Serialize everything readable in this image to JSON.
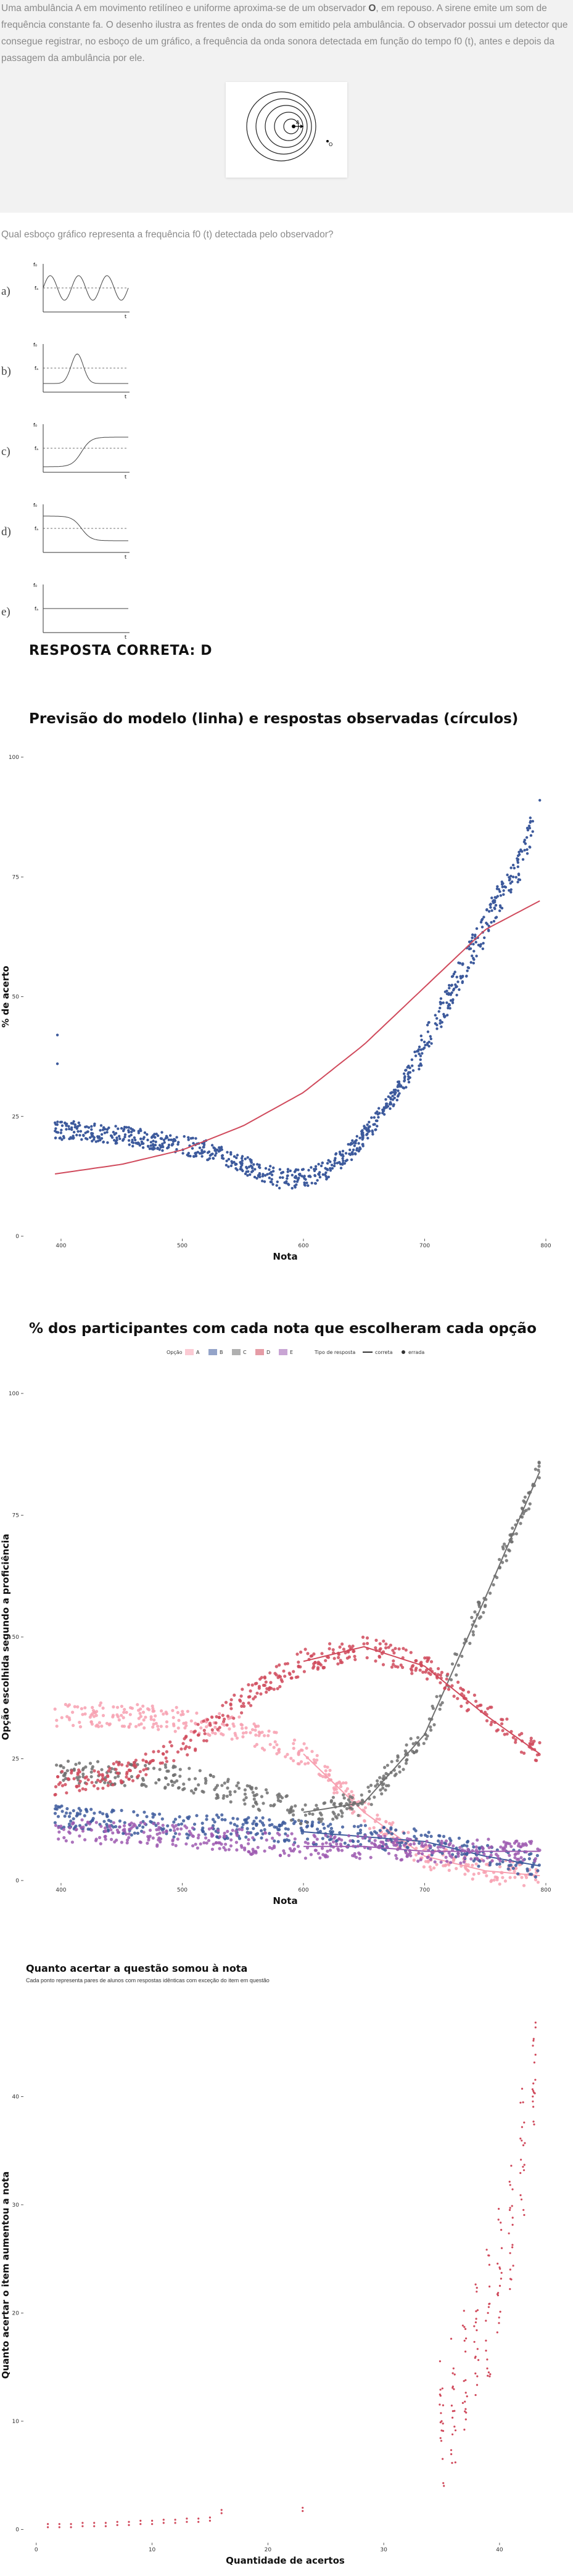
{
  "question": {
    "intro_a": "Uma ambulância A em movimento retilíneo e uniforme aproxima-se de um observador ",
    "intro_observer": "O",
    "intro_b": ", em repouso. A sirene emite um som de frequência constante fa. O desenho ilustra as frentes de onda do som emitido pela ambulância. O observador possui um detector que consegue registrar, no esboço de um gráfico, a frequência da onda sonora detectada em função do tempo f0 (t), antes e depois da passagem da ambulância por ele.",
    "figure_label_a": "A",
    "figure_label_o": "O",
    "prompt": "Qual esboço gráfico representa a frequência f0 (t) detectada pelo observador?",
    "options": [
      {
        "letter": "a)",
        "shape": "sine"
      },
      {
        "letter": "b)",
        "shape": "bump"
      },
      {
        "letter": "c)",
        "shape": "rise"
      },
      {
        "letter": "d)",
        "shape": "fall"
      },
      {
        "letter": "e)",
        "shape": "flat"
      }
    ],
    "axis_f": "f₀",
    "axis_fa": "fₐ",
    "axis_t": "t",
    "answer": "RESPOSTA CORRETA: D"
  },
  "colors": {
    "blue": "#3d5a9c",
    "red_line": "#d04a5c",
    "A": "#f7a0b0",
    "B": "#3d5a9c",
    "C": "#707070",
    "D": "#d04a5c",
    "E": "#9d5bb0"
  },
  "chart_data": [
    {
      "type": "scatter",
      "title": "Previsão do modelo (linha) e respostas observadas (círculos)",
      "xlabel": "Nota",
      "ylabel": "% de acerto",
      "xlim": [
        370,
        800
      ],
      "ylim": [
        0,
        100
      ],
      "xticks": [
        400,
        500,
        600,
        700,
        800
      ],
      "yticks": [
        0,
        25,
        50,
        75,
        100
      ],
      "series": [
        {
          "kind": "line",
          "x": [
            395,
            450,
            500,
            550,
            600,
            650,
            700,
            750,
            795
          ],
          "y": [
            13,
            15,
            18,
            23,
            30,
            40,
            52,
            64,
            70
          ]
        },
        {
          "kind": "points",
          "x": [
            395,
            420,
            450,
            480,
            500,
            520,
            540,
            560,
            580,
            600,
            620,
            640,
            660,
            680,
            700,
            720,
            740,
            760,
            780,
            795
          ],
          "y": [
            22,
            22,
            21,
            20,
            19,
            18,
            16,
            14,
            12,
            12,
            14,
            18,
            24,
            31,
            40,
            50,
            60,
            70,
            78,
            91
          ]
        }
      ]
    },
    {
      "type": "scatter",
      "title": "% dos participantes com cada nota que escolheram cada opção",
      "xlabel": "Nota",
      "ylabel": "Opção escolhida segundo a proficiência",
      "xlim": [
        370,
        800
      ],
      "ylim": [
        0,
        100
      ],
      "xticks": [
        400,
        500,
        600,
        700,
        800
      ],
      "yticks": [
        0,
        25,
        50,
        75,
        100
      ],
      "legend_title": "Opção",
      "legend_type_title": "Tipo de resposta",
      "legend_types": [
        "correta",
        "errada"
      ],
      "series": [
        {
          "name": "A",
          "x": [
            395,
            450,
            500,
            550,
            600,
            650,
            700,
            750,
            795
          ],
          "y": [
            34,
            34,
            33,
            31,
            26,
            14,
            5,
            2,
            1
          ]
        },
        {
          "name": "B",
          "x": [
            395,
            450,
            500,
            550,
            600,
            650,
            700,
            750,
            795
          ],
          "y": [
            13,
            12,
            11,
            11,
            10,
            9,
            8,
            5,
            3
          ]
        },
        {
          "name": "C",
          "x": [
            395,
            450,
            500,
            550,
            600,
            650,
            700,
            750,
            795
          ],
          "y": [
            22,
            22,
            21,
            18,
            14,
            16,
            30,
            58,
            84
          ]
        },
        {
          "name": "D",
          "x": [
            395,
            450,
            500,
            550,
            600,
            650,
            700,
            750,
            795
          ],
          "y": [
            20,
            22,
            27,
            37,
            45,
            48,
            44,
            34,
            26
          ]
        },
        {
          "name": "E",
          "x": [
            395,
            450,
            500,
            550,
            600,
            650,
            700,
            750,
            795
          ],
          "y": [
            10,
            10,
            9,
            8,
            7,
            7,
            6,
            6,
            6
          ]
        }
      ]
    },
    {
      "type": "scatter",
      "title": "Quanto acertar a questão somou à nota",
      "subtitle": "Cada ponto representa pares de alunos com respostas idênticas com exceção do item em questão",
      "xlabel": "Quantidade de acertos",
      "ylabel": "Quanto acertar o item aumentou a nota",
      "xlim": [
        -1,
        44
      ],
      "ylim": [
        -1,
        48
      ],
      "xticks": [
        0,
        10,
        20,
        30,
        40
      ],
      "yticks": [
        0,
        10,
        20,
        30,
        40
      ],
      "series": [
        {
          "kind": "points",
          "x": [
            1,
            2,
            3,
            4,
            5,
            6,
            7,
            8,
            9,
            10,
            11,
            12,
            13,
            14,
            15,
            16,
            23,
            35,
            36,
            37,
            38,
            39,
            40,
            41,
            42,
            43
          ],
          "y": [
            0.2,
            0.2,
            0.2,
            0.3,
            0.3,
            0.3,
            0.4,
            0.4,
            0.5,
            0.5,
            0.6,
            0.6,
            0.7,
            0.7,
            0.8,
            1.5,
            1.7,
            12,
            14,
            17,
            19,
            22,
            26,
            30,
            37,
            43
          ]
        }
      ]
    }
  ]
}
